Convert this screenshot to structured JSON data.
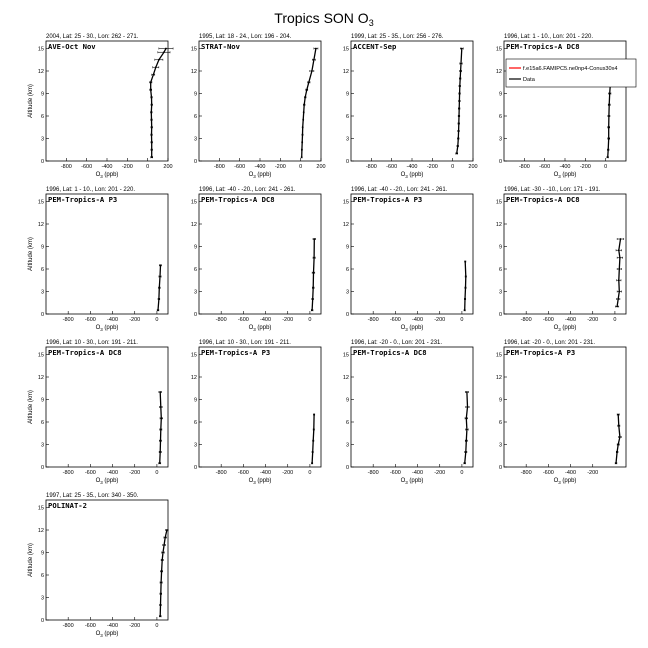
{
  "figure": {
    "title_main": "Tropics SON O",
    "title_sub": "3"
  },
  "chart_data": [
    {
      "type": "line",
      "header": "2004, Lat: 25 - 30., Lon: 262 - 271.",
      "campaign": "AVE-Oct Nov",
      "xlabel_main": "O",
      "xlabel_sub": "3",
      "xlabel_tail": " (ppb)",
      "ylabel": "Altitude (km)",
      "xlim": [
        -1000,
        200
      ],
      "ylim": [
        0,
        16
      ],
      "xticks": [
        "-800",
        "-600",
        "-400",
        "-200",
        "0",
        "200"
      ],
      "yticks": [
        "0",
        "3",
        "6",
        "9",
        "12",
        "15"
      ],
      "series": [
        {
          "name": "Data",
          "color": "#000000",
          "x": [
            40,
            40,
            40,
            38,
            40,
            38,
            36,
            40,
            38,
            30,
            30,
            55,
            80,
            110,
            160,
            180
          ],
          "y": [
            0.5,
            1.5,
            2.5,
            3.5,
            4.5,
            5.5,
            6.5,
            7.5,
            8.5,
            9.5,
            10.5,
            11.5,
            12.5,
            13.5,
            14.5,
            15
          ],
          "err": [
            10,
            8,
            8,
            8,
            8,
            8,
            8,
            8,
            8,
            10,
            12,
            15,
            30,
            40,
            60,
            70
          ]
        }
      ]
    },
    {
      "type": "line",
      "header": "1995, Lat: 18 - 24., Lon: 196 - 204.",
      "campaign": "STRAT-Nov",
      "xlabel_main": "O",
      "xlabel_sub": "3",
      "xlabel_tail": " (ppb)",
      "ylabel": "",
      "xlim": [
        -1000,
        200
      ],
      "ylim": [
        0,
        16
      ],
      "xticks": [
        "-800",
        "-600",
        "-400",
        "-200",
        "0",
        "200"
      ],
      "yticks": [
        "0",
        "3",
        "6",
        "9",
        "12",
        "15"
      ],
      "series": [
        {
          "name": "Data",
          "color": "#000000",
          "x": [
            10,
            12,
            15,
            18,
            20,
            25,
            30,
            35,
            45,
            60,
            80,
            110,
            130,
            150
          ],
          "y": [
            0.5,
            1.5,
            2.5,
            3.5,
            4.5,
            5.5,
            6.5,
            7.5,
            8.5,
            9.5,
            10.5,
            12,
            13.5,
            15
          ],
          "err": [
            5,
            5,
            5,
            5,
            5,
            5,
            5,
            8,
            8,
            10,
            12,
            20,
            15,
            20
          ]
        }
      ]
    },
    {
      "type": "line",
      "header": "1999, Lat: 25 - 35., Lon: 256 - 276.",
      "campaign": "ACCENT-Sep",
      "xlabel_main": "O",
      "xlabel_sub": "3",
      "xlabel_tail": " (ppb)",
      "ylabel": "",
      "xlim": [
        -1000,
        200
      ],
      "ylim": [
        0,
        16
      ],
      "xticks": [
        "-800",
        "-600",
        "-400",
        "-200",
        "0",
        "200"
      ],
      "yticks": [
        "0",
        "3",
        "6",
        "9",
        "12",
        "15"
      ],
      "series": [
        {
          "name": "Data",
          "color": "#000000",
          "x": [
            40,
            50,
            55,
            58,
            60,
            62,
            64,
            66,
            68,
            70,
            74,
            78,
            82,
            90
          ],
          "y": [
            1,
            2,
            3,
            4,
            5,
            6,
            7,
            8,
            9,
            10,
            11,
            12,
            13,
            15
          ],
          "err": [
            10,
            8,
            8,
            8,
            8,
            8,
            8,
            8,
            8,
            8,
            8,
            10,
            12,
            15
          ]
        }
      ]
    },
    {
      "type": "line",
      "header": "1996, Lat: 1 - 10., Lon: 201 - 220.",
      "campaign": "PEM-Tropics-A DC8",
      "xlabel_main": "O",
      "xlabel_sub": "3",
      "xlabel_tail": " (ppb)",
      "ylabel": "",
      "xlim": [
        -1000,
        200
      ],
      "ylim": [
        0,
        16
      ],
      "xticks": [
        "-800",
        "-600",
        "-400",
        "-200",
        "0"
      ],
      "yticks": [
        "0",
        "3",
        "6",
        "9",
        "12",
        "15"
      ],
      "legend": [
        "f.e15a6.FAMIPC5.ne0np4-Conus30x4",
        "Data"
      ],
      "series": [
        {
          "name": "f.e15a6.FAMIPC5.ne0np4-Conus30x4",
          "color": "#ff0000",
          "x": [],
          "y": [],
          "err": []
        },
        {
          "name": "Data",
          "color": "#000000",
          "x": [
            20,
            25,
            30,
            30,
            32,
            35,
            40,
            45
          ],
          "y": [
            0.5,
            1.5,
            3,
            4.5,
            6,
            7.5,
            9,
            10
          ],
          "err": [
            8,
            8,
            10,
            10,
            10,
            10,
            12,
            12
          ]
        }
      ]
    },
    {
      "type": "line",
      "header": "1996, Lat: 1 - 10., Lon: 201 - 220.",
      "campaign": "PEM-Tropics-A P3",
      "xlabel_main": "O",
      "xlabel_sub": "3",
      "xlabel_tail": " (ppb)",
      "ylabel": "Altitude (km)",
      "xlim": [
        -1000,
        100
      ],
      "ylim": [
        0,
        16
      ],
      "xticks": [
        "-800",
        "-600",
        "-400",
        "-200",
        "0"
      ],
      "yticks": [
        "0",
        "3",
        "6",
        "9",
        "12",
        "15"
      ],
      "series": [
        {
          "name": "Data",
          "color": "#000000",
          "x": [
            10,
            18,
            22,
            28,
            32
          ],
          "y": [
            0.5,
            2,
            3.5,
            5,
            6.5
          ],
          "err": [
            8,
            8,
            8,
            10,
            10
          ]
        }
      ]
    },
    {
      "type": "line",
      "header": "1996, Lat: -40 - -20., Lon: 241 - 261.",
      "campaign": "PEM-Tropics-A DC8",
      "xlabel_main": "O",
      "xlabel_sub": "3",
      "xlabel_tail": " (ppb)",
      "ylabel": "",
      "xlim": [
        -1000,
        100
      ],
      "ylim": [
        0,
        16
      ],
      "xticks": [
        "-800",
        "-600",
        "-400",
        "-200",
        "0"
      ],
      "yticks": [
        "0",
        "3",
        "6",
        "9",
        "12",
        "15"
      ],
      "series": [
        {
          "name": "Data",
          "color": "#000000",
          "x": [
            20,
            25,
            30,
            32,
            38,
            40
          ],
          "y": [
            0.5,
            2,
            3.5,
            5.5,
            7.5,
            10
          ],
          "err": [
            8,
            8,
            8,
            12,
            10,
            12
          ]
        }
      ]
    },
    {
      "type": "line",
      "header": "1996, Lat: -40 - -20., Lon: 241 - 261.",
      "campaign": "PEM-Tropics-A P3",
      "xlabel_main": "O",
      "xlabel_sub": "3",
      "xlabel_tail": " (ppb)",
      "ylabel": "",
      "xlim": [
        -1000,
        100
      ],
      "ylim": [
        0,
        16
      ],
      "xticks": [
        "-800",
        "-600",
        "-400",
        "-200",
        "0"
      ],
      "yticks": [
        "0",
        "3",
        "6",
        "9",
        "12",
        "15"
      ],
      "series": [
        {
          "name": "Data",
          "color": "#000000",
          "x": [
            25,
            28,
            32,
            35,
            30
          ],
          "y": [
            0.5,
            2,
            3.5,
            5,
            7
          ],
          "err": [
            6,
            6,
            6,
            6,
            6
          ]
        }
      ]
    },
    {
      "type": "line",
      "header": "1996, Lat: -30 - -10., Lon: 171 - 191.",
      "campaign": "PEM-Tropics-A DC8",
      "xlabel_main": "O",
      "xlabel_sub": "3",
      "xlabel_tail": " (ppb)",
      "ylabel": "",
      "xlim": [
        -1000,
        100
      ],
      "ylim": [
        0,
        16
      ],
      "xticks": [
        "-800",
        "-600",
        "-400",
        "-200",
        "0"
      ],
      "yticks": [
        "0",
        "3",
        "6",
        "9",
        "12",
        "15"
      ],
      "series": [
        {
          "name": "Data",
          "color": "#000000",
          "x": [
            20,
            30,
            40,
            35,
            40,
            45,
            35,
            50
          ],
          "y": [
            1,
            2,
            3,
            4.5,
            6,
            7.5,
            8.5,
            10
          ],
          "err": [
            15,
            15,
            20,
            20,
            20,
            25,
            25,
            30
          ]
        }
      ]
    },
    {
      "type": "line",
      "header": "1996, Lat: 10 - 30., Lon: 191 - 211.",
      "campaign": "PEM-Tropics-A DC8",
      "xlabel_main": "O",
      "xlabel_sub": "3",
      "xlabel_tail": " (ppb)",
      "ylabel": "Altitude (km)",
      "xlim": [
        -1000,
        100
      ],
      "ylim": [
        0,
        16
      ],
      "xticks": [
        "-800",
        "-600",
        "-400",
        "-200",
        "0"
      ],
      "yticks": [
        "0",
        "3",
        "6",
        "9",
        "12",
        "15"
      ],
      "series": [
        {
          "name": "Data",
          "color": "#000000",
          "x": [
            25,
            30,
            32,
            35,
            40,
            35,
            30
          ],
          "y": [
            0.5,
            2,
            3.5,
            5,
            6.5,
            8,
            10
          ],
          "err": [
            10,
            10,
            10,
            10,
            12,
            12,
            12
          ]
        }
      ]
    },
    {
      "type": "line",
      "header": "1996, Lat: 10 - 30., Lon: 191 - 211.",
      "campaign": "PEM-Tropics-A P3",
      "xlabel_main": "O",
      "xlabel_sub": "3",
      "xlabel_tail": " (ppb)",
      "ylabel": "",
      "xlim": [
        -1000,
        100
      ],
      "ylim": [
        0,
        16
      ],
      "xticks": [
        "-800",
        "-600",
        "-400",
        "-200",
        "0"
      ],
      "yticks": [
        "0",
        "3",
        "6",
        "9",
        "12",
        "15"
      ],
      "series": [
        {
          "name": "Data",
          "color": "#000000",
          "x": [
            20,
            25,
            30,
            35,
            38
          ],
          "y": [
            0.5,
            2,
            3.5,
            5,
            7
          ],
          "err": [
            6,
            6,
            6,
            6,
            6
          ]
        }
      ]
    },
    {
      "type": "line",
      "header": "1996, Lat: -20 - 0., Lon: 201 - 231.",
      "campaign": "PEM-Tropics-A DC8",
      "xlabel_main": "O",
      "xlabel_sub": "3",
      "xlabel_tail": " (ppb)",
      "ylabel": "",
      "xlim": [
        -1000,
        100
      ],
      "ylim": [
        0,
        16
      ],
      "xticks": [
        "-800",
        "-600",
        "-400",
        "-200",
        "0"
      ],
      "yticks": [
        "0",
        "3",
        "6",
        "9",
        "12",
        "15"
      ],
      "series": [
        {
          "name": "Data",
          "color": "#000000",
          "x": [
            25,
            35,
            40,
            45,
            40,
            50,
            45
          ],
          "y": [
            0.5,
            2,
            3.5,
            5,
            6.5,
            8,
            10
          ],
          "err": [
            8,
            10,
            10,
            12,
            12,
            15,
            15
          ]
        }
      ]
    },
    {
      "type": "line",
      "header": "1996, Lat: -20 - 0., Lon: 201 - 231.",
      "campaign": "PEM-Tropics-A P3",
      "xlabel_main": "O",
      "xlabel_sub": "3",
      "xlabel_tail": " (ppb)",
      "ylabel": "",
      "xlim": [
        -1000,
        100
      ],
      "ylim": [
        0,
        16
      ],
      "xticks": [
        "-800",
        "-600",
        "-400",
        "-200"
      ],
      "yticks": [
        "0",
        "3",
        "6",
        "9",
        "12",
        "15"
      ],
      "series": [
        {
          "name": "Data",
          "color": "#000000",
          "x": [
            10,
            20,
            30,
            45,
            35,
            30
          ],
          "y": [
            0.5,
            2,
            3,
            4,
            5.5,
            7
          ],
          "err": [
            8,
            8,
            10,
            12,
            10,
            10
          ]
        }
      ]
    },
    {
      "type": "line",
      "header": "1997, Lat: 25 - 35., Lon: 340 - 350.",
      "campaign": "POLINAT-2",
      "xlabel_main": "O",
      "xlabel_sub": "3",
      "xlabel_tail": " (ppb)",
      "ylabel": "Altitude (km)",
      "xlim": [
        -1000,
        100
      ],
      "ylim": [
        0,
        16
      ],
      "xticks": [
        "-800",
        "-600",
        "-400",
        "-200",
        "0"
      ],
      "yticks": [
        "0",
        "3",
        "6",
        "9",
        "12",
        "15"
      ],
      "series": [
        {
          "name": "Data",
          "color": "#000000",
          "x": [
            30,
            32,
            35,
            38,
            42,
            48,
            55,
            65,
            75,
            90
          ],
          "y": [
            0.5,
            2,
            3.5,
            5,
            6.5,
            8,
            9,
            10,
            11,
            12
          ],
          "err": [
            8,
            8,
            8,
            10,
            10,
            10,
            12,
            12,
            12,
            12
          ]
        }
      ]
    }
  ]
}
